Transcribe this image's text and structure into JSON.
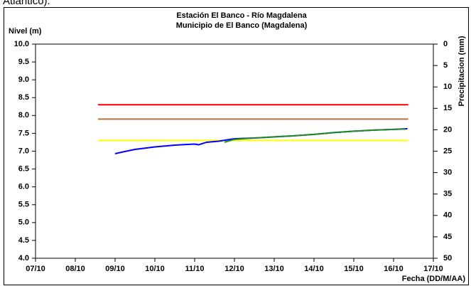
{
  "caption_fragment": "Atlántico).",
  "chart_data": {
    "type": "line",
    "title": "Estación El Banco - Río Magdalena",
    "subtitle": "Municipio de El Banco (Magdalena)",
    "y_label": "Nivel (m)",
    "y2_label": "Precipitacion (mm)",
    "x_label": "Fecha (DD/M/AA)",
    "xlim": [
      7,
      17
    ],
    "xticks": [
      {
        "value": 7,
        "label": "07/10"
      },
      {
        "value": 8,
        "label": "08/10"
      },
      {
        "value": 9,
        "label": "09/10"
      },
      {
        "value": 10,
        "label": "10/10"
      },
      {
        "value": 11,
        "label": "11/10"
      },
      {
        "value": 12,
        "label": "12/10"
      },
      {
        "value": 13,
        "label": "13/10"
      },
      {
        "value": 14,
        "label": "14/10"
      },
      {
        "value": 15,
        "label": "15/10"
      },
      {
        "value": 16,
        "label": "16/10"
      },
      {
        "value": 17,
        "label": "17/10"
      }
    ],
    "ylim": [
      4,
      10
    ],
    "yticks": [
      {
        "value": 4,
        "label": "4.0"
      },
      4.5,
      {
        "value": 5,
        "label": "5.0"
      },
      5.5,
      {
        "value": 6,
        "label": "6.0"
      },
      6.5,
      {
        "value": 7,
        "label": "7.0"
      },
      7.5,
      {
        "value": 8,
        "label": "8.0"
      },
      8.5,
      {
        "value": 9,
        "label": "9.0"
      },
      9.5,
      {
        "value": 10,
        "label": "10.0"
      }
    ],
    "y2lim": [
      0,
      50
    ],
    "y2_inverted": true,
    "y2ticks": [
      0,
      5,
      10,
      15,
      20,
      25,
      30,
      35,
      40,
      45,
      50
    ],
    "grid": false,
    "series": [
      {
        "color": "#ff0000",
        "x": [
          8.57,
          16.37
        ],
        "values": [
          8.3,
          8.3
        ]
      },
      {
        "color": "#b07048",
        "x": [
          8.57,
          16.37
        ],
        "values": [
          7.9,
          7.9
        ]
      },
      {
        "color": "#ffff00",
        "x": [
          8.57,
          16.37
        ],
        "values": [
          7.3,
          7.3
        ]
      },
      {
        "color": "#0000ff",
        "x": [
          9.0,
          9.2,
          9.5,
          10.0,
          10.5,
          11.0,
          11.1,
          11.3,
          11.6,
          12.0,
          12.5,
          13.0,
          13.5,
          14.0,
          14.5,
          15.0,
          15.5,
          16.0,
          16.35
        ],
        "values": [
          6.93,
          6.98,
          7.05,
          7.12,
          7.17,
          7.2,
          7.18,
          7.25,
          7.28,
          7.35,
          7.37,
          7.4,
          7.43,
          7.47,
          7.52,
          7.56,
          7.59,
          7.61,
          7.63
        ]
      },
      {
        "color": "#228b22",
        "x": [
          11.75,
          11.9,
          12.0,
          12.5,
          13.0,
          13.5,
          14.0,
          14.5,
          15.0,
          15.5,
          16.0,
          16.3
        ],
        "values": [
          7.25,
          7.3,
          7.33,
          7.37,
          7.4,
          7.43,
          7.47,
          7.52,
          7.56,
          7.59,
          7.61,
          7.62
        ]
      }
    ]
  }
}
